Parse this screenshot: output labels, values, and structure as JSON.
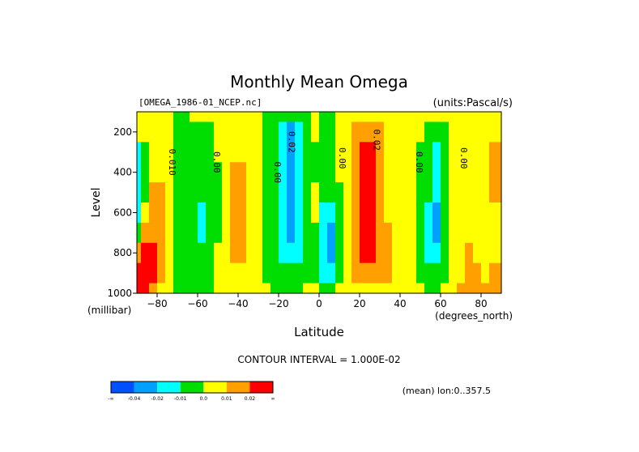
{
  "chart_data": {
    "type": "heatmap",
    "title": "Monthly Mean Omega",
    "file_label": "[OMEGA_1986-01_NCEP.nc]",
    "units_label": "(units:Pascal/s)",
    "xlabel": "Latitude",
    "x_unit_label": "(degrees_north)",
    "ylabel": "Level",
    "y_unit_label": "(millibar)",
    "xlim": [
      -90,
      90
    ],
    "ylim": [
      1000,
      100
    ],
    "x_ticks": [
      -80,
      -60,
      -40,
      -20,
      0,
      20,
      40,
      60,
      80
    ],
    "x_tick_labels": [
      "−80",
      "−60",
      "−40",
      "−20",
      "0",
      "20",
      "40",
      "60",
      "80"
    ],
    "y_ticks": [
      200,
      400,
      600,
      800,
      1000
    ],
    "y_tick_labels": [
      "200",
      "400",
      "600",
      "800",
      "1000"
    ],
    "contour_interval_label": "CONTOUR INTERVAL = 1.000E-02",
    "footer_label": "(mean) lon:0..357.5",
    "contour_labels": [
      {
        "text": "0.010",
        "lat": -74,
        "level": 350
      },
      {
        "text": "0.00",
        "lat": -52,
        "level": 350
      },
      {
        "text": "0.00",
        "lat": -22,
        "level": 400
      },
      {
        "text": "0.02",
        "lat": -15,
        "level": 250
      },
      {
        "text": "0.00",
        "lat": 10,
        "level": 330
      },
      {
        "text": "0.02",
        "lat": 27,
        "level": 240
      },
      {
        "text": "0.00",
        "lat": 48,
        "level": 350
      },
      {
        "text": "0.00",
        "lat": 70,
        "level": 330
      }
    ],
    "colorbar": {
      "colors": [
        "#0050ff",
        "#00a0ff",
        "#00ffff",
        "#00dd00",
        "#ffff00",
        "#ffa000",
        "#ff0000"
      ],
      "labels": [
        "-∞",
        "-0.04",
        "-0.02",
        "-0.01",
        "0.0",
        "0.01",
        "0.02",
        "∞"
      ]
    },
    "columns": [
      {
        "lat": -90,
        "values": [
          0,
          0,
          -0.015,
          -0.015,
          -0.015,
          -0.015,
          -0.01,
          0.01,
          0.03,
          0.03
        ]
      },
      {
        "lat": -86,
        "values": [
          0,
          0,
          -0.01,
          -0.01,
          -0.01,
          0,
          0.01,
          0.02,
          0.025,
          0.03
        ]
      },
      {
        "lat": -82,
        "values": [
          0,
          0,
          0,
          0.005,
          0.01,
          0.015,
          0.015,
          0.02,
          0.02,
          0.015
        ]
      },
      {
        "lat": -78,
        "values": [
          0,
          0,
          0,
          0.005,
          0.01,
          0.01,
          0.01,
          0.01,
          0.01,
          0.005
        ]
      },
      {
        "lat": -74,
        "values": [
          0,
          0,
          0,
          0,
          0,
          0,
          0,
          0,
          0,
          0.005
        ]
      },
      {
        "lat": -70,
        "values": [
          -0.005,
          -0.005,
          -0.005,
          -0.005,
          -0.005,
          -0.005,
          -0.005,
          -0.005,
          -0.005,
          -0.005
        ]
      },
      {
        "lat": -66,
        "values": [
          -0.005,
          -0.005,
          -0.005,
          -0.005,
          -0.005,
          -0.005,
          -0.005,
          -0.005,
          -0.005,
          -0.005
        ]
      },
      {
        "lat": -62,
        "values": [
          0,
          -0.005,
          -0.005,
          -0.005,
          -0.005,
          -0.005,
          -0.005,
          -0.005,
          -0.005,
          -0.005
        ]
      },
      {
        "lat": -58,
        "values": [
          0,
          -0.005,
          -0.005,
          -0.005,
          -0.005,
          -0.015,
          -0.015,
          -0.005,
          -0.005,
          -0.005
        ]
      },
      {
        "lat": -54,
        "values": [
          0,
          -0.005,
          -0.005,
          -0.005,
          -0.005,
          -0.005,
          -0.005,
          -0.005,
          -0.005,
          -0.005
        ]
      },
      {
        "lat": -50,
        "values": [
          0,
          0,
          0,
          -0.005,
          -0.005,
          -0.005,
          -0.005,
          0,
          0,
          0
        ]
      },
      {
        "lat": -46,
        "values": [
          0,
          0,
          0,
          0,
          0,
          0,
          0,
          0,
          0,
          0
        ]
      },
      {
        "lat": -42,
        "values": [
          0,
          0,
          0,
          0.012,
          0.015,
          0.015,
          0.015,
          0.012,
          0,
          0
        ]
      },
      {
        "lat": -38,
        "values": [
          0,
          0,
          0,
          0.012,
          0.015,
          0.015,
          0.015,
          0.012,
          0.005,
          0
        ]
      },
      {
        "lat": -34,
        "values": [
          0,
          0,
          0,
          0,
          0.005,
          0.005,
          0.005,
          0.005,
          0,
          0
        ]
      },
      {
        "lat": -30,
        "values": [
          0,
          0,
          0,
          0,
          0,
          0,
          0,
          0,
          0,
          0
        ]
      },
      {
        "lat": -26,
        "values": [
          -0.005,
          -0.005,
          -0.005,
          -0.005,
          -0.005,
          -0.005,
          -0.005,
          -0.005,
          -0.005,
          0
        ]
      },
      {
        "lat": -22,
        "values": [
          -0.005,
          -0.005,
          -0.005,
          -0.005,
          -0.005,
          -0.005,
          -0.005,
          -0.005,
          -0.005,
          -0.005
        ]
      },
      {
        "lat": -18,
        "values": [
          -0.005,
          -0.015,
          -0.015,
          -0.015,
          -0.015,
          -0.015,
          -0.015,
          -0.015,
          -0.005,
          -0.005
        ]
      },
      {
        "lat": -14,
        "values": [
          -0.005,
          -0.03,
          -0.03,
          -0.03,
          -0.03,
          -0.03,
          -0.03,
          -0.015,
          -0.005,
          -0.005
        ]
      },
      {
        "lat": -10,
        "values": [
          -0.005,
          -0.015,
          -0.015,
          -0.015,
          -0.015,
          -0.015,
          -0.015,
          -0.015,
          -0.005,
          -0.005
        ]
      },
      {
        "lat": -6,
        "values": [
          -0.005,
          -0.005,
          -0.005,
          -0.005,
          -0.005,
          -0.005,
          -0.005,
          -0.005,
          -0.005,
          0
        ]
      },
      {
        "lat": -2,
        "values": [
          0,
          0,
          -0.005,
          -0.005,
          0,
          0,
          -0.005,
          -0.005,
          -0.005,
          0
        ]
      },
      {
        "lat": 2,
        "values": [
          -0.005,
          -0.005,
          -0.005,
          -0.005,
          -0.005,
          -0.015,
          -0.015,
          -0.015,
          -0.015,
          -0.005
        ]
      },
      {
        "lat": 6,
        "values": [
          -0.005,
          -0.005,
          -0.005,
          -0.005,
          -0.005,
          -0.015,
          -0.03,
          -0.03,
          -0.015,
          -0.005
        ]
      },
      {
        "lat": 10,
        "values": [
          0,
          0,
          0,
          0,
          -0.005,
          -0.005,
          -0.005,
          -0.005,
          -0.005,
          0
        ]
      },
      {
        "lat": 14,
        "values": [
          0,
          0,
          0,
          0,
          0,
          0,
          0,
          0,
          0,
          0
        ]
      },
      {
        "lat": 18,
        "values": [
          0.005,
          0.015,
          0.015,
          0.015,
          0.015,
          0.015,
          0.015,
          0.015,
          0.015,
          0.005
        ]
      },
      {
        "lat": 22,
        "values": [
          0.005,
          0.015,
          0.03,
          0.03,
          0.03,
          0.03,
          0.03,
          0.03,
          0.015,
          0.005
        ]
      },
      {
        "lat": 26,
        "values": [
          0.005,
          0.015,
          0.03,
          0.03,
          0.03,
          0.03,
          0.03,
          0.03,
          0.015,
          0.005
        ]
      },
      {
        "lat": 30,
        "values": [
          0.005,
          0.015,
          0.015,
          0.015,
          0.015,
          0.015,
          0.015,
          0.015,
          0.015,
          0.005
        ]
      },
      {
        "lat": 34,
        "values": [
          0.005,
          0.005,
          0.005,
          0.005,
          0.005,
          0.005,
          0.015,
          0.015,
          0.015,
          0.005
        ]
      },
      {
        "lat": 38,
        "values": [
          0.005,
          0.005,
          0.005,
          0.005,
          0.005,
          0.005,
          0.005,
          0.005,
          0.005,
          0.005
        ]
      },
      {
        "lat": 42,
        "values": [
          0,
          0.005,
          0.005,
          0.005,
          0.005,
          0.005,
          0.005,
          0.005,
          0.005,
          0.005
        ]
      },
      {
        "lat": 46,
        "values": [
          0,
          0,
          0,
          0,
          0,
          0,
          0,
          0,
          0,
          0.005
        ]
      },
      {
        "lat": 50,
        "values": [
          0,
          0,
          -0.005,
          -0.005,
          -0.005,
          -0.005,
          -0.005,
          -0.005,
          -0.005,
          0
        ]
      },
      {
        "lat": 54,
        "values": [
          0,
          -0.005,
          -0.005,
          -0.005,
          -0.005,
          -0.015,
          -0.015,
          -0.015,
          -0.005,
          -0.005
        ]
      },
      {
        "lat": 58,
        "values": [
          0,
          -0.005,
          -0.015,
          -0.015,
          -0.015,
          -0.03,
          -0.03,
          -0.015,
          -0.005,
          -0.005
        ]
      },
      {
        "lat": 62,
        "values": [
          0,
          -0.005,
          -0.005,
          -0.005,
          -0.005,
          -0.005,
          -0.005,
          -0.005,
          -0.005,
          0
        ]
      },
      {
        "lat": 66,
        "values": [
          0,
          0,
          0,
          0,
          0,
          0,
          0,
          0,
          0,
          0
        ]
      },
      {
        "lat": 70,
        "values": [
          0.005,
          0.005,
          0.005,
          0.005,
          0.005,
          0.005,
          0.005,
          0.005,
          0.005,
          0.015
        ]
      },
      {
        "lat": 74,
        "values": [
          0.005,
          0.005,
          0.005,
          0.005,
          0.005,
          0.005,
          0.005,
          0.015,
          0.015,
          0.015
        ]
      },
      {
        "lat": 78,
        "values": [
          0.005,
          0.005,
          0.005,
          0.005,
          0.005,
          0.005,
          0.005,
          0.005,
          0.015,
          0.015
        ]
      },
      {
        "lat": 82,
        "values": [
          0.005,
          0.005,
          0.005,
          0.005,
          0.005,
          0.005,
          0.005,
          0.005,
          0.005,
          0.015
        ]
      },
      {
        "lat": 86,
        "values": [
          0.005,
          0.005,
          0.015,
          0.015,
          0.015,
          0.005,
          0.005,
          0.005,
          0.015,
          0.015
        ]
      },
      {
        "lat": 90,
        "values": [
          0.005,
          0.005,
          0.015,
          0.015,
          0.015,
          0.005,
          0.005,
          0.005,
          0.015,
          0.015
        ]
      }
    ],
    "levels_per_column": [
      100,
      200,
      300,
      400,
      500,
      600,
      700,
      800,
      900,
      1000
    ]
  }
}
